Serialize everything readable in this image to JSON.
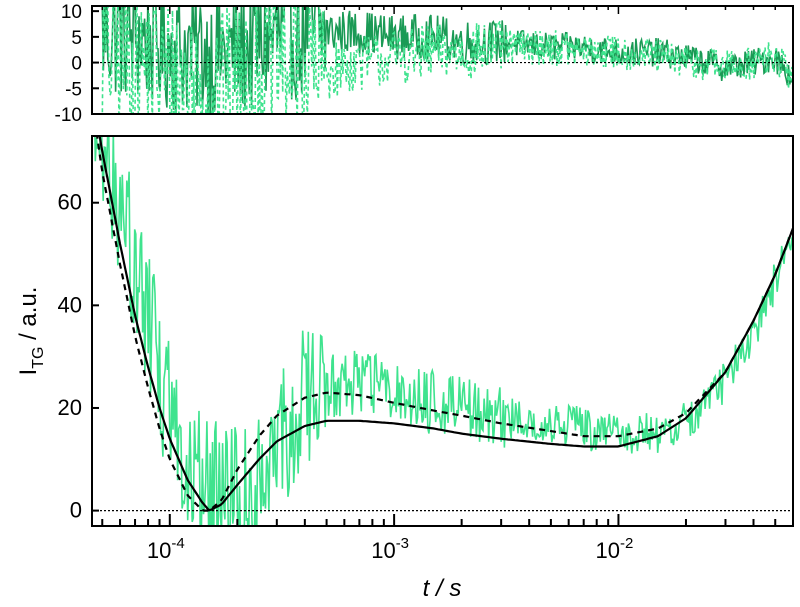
{
  "chart_data": [
    {
      "type": "line",
      "panel": "residuals",
      "x_scale": "log",
      "xlim": [
        4.5e-05,
        0.06
      ],
      "ylim": [
        -10,
        11
      ],
      "y_ticks": [
        {
          "value": 10,
          "label": "10"
        },
        {
          "value": 5,
          "label": "5"
        },
        {
          "value": 0,
          "label": "0"
        },
        {
          "value": -5,
          "label": "-5"
        },
        {
          "value": -10,
          "label": "-10"
        }
      ],
      "reference_line": 0,
      "series": [
        {
          "style": "solid",
          "color": "#1a9a55",
          "x": [
            5e-05,
            7e-05,
            0.0001,
            0.00015,
            0.0002,
            0.0003,
            0.0005,
            0.0007,
            0.001,
            0.0015,
            0.002,
            0.003,
            0.005,
            0.007,
            0.01,
            0.015,
            0.02,
            0.025,
            0.03,
            0.04,
            0.05,
            0.06
          ],
          "y": [
            6,
            5,
            3,
            2,
            2,
            5,
            6,
            6,
            5,
            5,
            4,
            4,
            3,
            3,
            2,
            2,
            1,
            0,
            -1,
            0,
            1,
            -3
          ],
          "noise": 8
        },
        {
          "style": "dashed",
          "color": "#3fe38e",
          "x": [
            5e-05,
            7e-05,
            0.0001,
            0.00015,
            0.0002,
            0.0003,
            0.0005,
            0.0007,
            0.001,
            0.0015,
            0.002,
            0.003,
            0.005,
            0.007,
            0.01,
            0.015,
            0.02,
            0.025,
            0.03,
            0.04,
            0.05,
            0.06
          ],
          "y": [
            2,
            0,
            -3,
            -5,
            -4,
            0,
            -2,
            0,
            1,
            2,
            2,
            3,
            3,
            2,
            2,
            1,
            0,
            0,
            -1,
            0,
            1,
            -3
          ],
          "noise": 10
        }
      ]
    },
    {
      "type": "line",
      "panel": "main",
      "x_scale": "log",
      "xlim": [
        4.5e-05,
        0.06
      ],
      "ylim": [
        -3,
        73
      ],
      "xlabel": "t / s",
      "ylabel": "I",
      "ylabel_sub": "TG",
      "ylabel_unit": " / a.u.",
      "x_ticks": [
        {
          "value": 0.0001,
          "base": "10",
          "exp": "-4"
        },
        {
          "value": 0.001,
          "base": "10",
          "exp": "-3"
        },
        {
          "value": 0.01,
          "base": "10",
          "exp": "-2"
        }
      ],
      "y_ticks": [
        {
          "value": 0,
          "label": "0"
        },
        {
          "value": 20,
          "label": "20"
        },
        {
          "value": 40,
          "label": "40"
        },
        {
          "value": 60,
          "label": "60"
        }
      ],
      "reference_line": 0,
      "series": [
        {
          "style": "noisy-data",
          "color": "#3fe38e",
          "x": [
            4.6e-05,
            5e-05,
            6e-05,
            7e-05,
            8e-05,
            0.0001,
            0.00012,
            0.00015,
            0.0002,
            0.00025,
            0.0003,
            0.0004,
            0.0005,
            0.0007,
            0.001,
            0.0015,
            0.002,
            0.003,
            0.005,
            0.007,
            0.01,
            0.015,
            0.02,
            0.03,
            0.04,
            0.05,
            0.06
          ],
          "y": [
            78,
            68,
            60,
            48,
            38,
            18,
            8,
            4,
            4,
            6,
            12,
            22,
            24,
            25,
            23,
            21,
            20,
            18,
            17,
            16,
            15,
            15,
            17,
            25,
            35,
            45,
            55
          ],
          "noise": 14
        },
        {
          "style": "solid",
          "color": "#000000",
          "x": [
            4.5e-05,
            5e-05,
            6e-05,
            7e-05,
            8e-05,
            9e-05,
            0.0001,
            0.00012,
            0.00014,
            0.00015,
            0.00017,
            0.0002,
            0.00025,
            0.0003,
            0.0004,
            0.0005,
            0.0007,
            0.001,
            0.0015,
            0.002,
            0.003,
            0.005,
            0.007,
            0.01,
            0.015,
            0.02,
            0.03,
            0.04,
            0.05,
            0.06
          ],
          "y": [
            82,
            70,
            52,
            38,
            28,
            20,
            14,
            6,
            1.5,
            0,
            1.2,
            5,
            10,
            13.5,
            16.5,
            17.5,
            17.5,
            17,
            16,
            15,
            14,
            13,
            12.5,
            12.5,
            14.5,
            18,
            27,
            37,
            46,
            55
          ],
          "noise": 0
        },
        {
          "style": "dashed",
          "color": "#000000",
          "x": [
            4.5e-05,
            5e-05,
            6e-05,
            7e-05,
            8e-05,
            9e-05,
            0.0001,
            0.00012,
            0.00014,
            0.00015,
            0.00017,
            0.0002,
            0.00025,
            0.0003,
            0.0004,
            0.0005,
            0.0007,
            0.001,
            0.0015,
            0.002,
            0.003,
            0.005,
            0.007,
            0.01,
            0.015,
            0.02,
            0.03,
            0.04,
            0.05,
            0.06
          ],
          "y": [
            80,
            66,
            48,
            34,
            24,
            16,
            10,
            3,
            0,
            0,
            2,
            8,
            14.5,
            18.5,
            22,
            23,
            22.5,
            21,
            19.5,
            18.5,
            17,
            15.5,
            14.5,
            14.5,
            16,
            19,
            27,
            37,
            46,
            55
          ],
          "noise": 0
        }
      ]
    }
  ]
}
